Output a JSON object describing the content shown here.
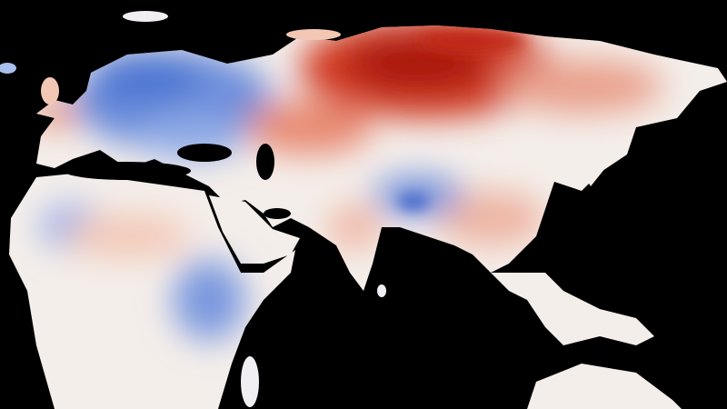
{
  "map": {
    "colors": {
      "ocean": "#000000",
      "land_neutral": "#f4eeea",
      "warm_strong": "#b0150c",
      "warm_mid": "#e0604a",
      "warm_light": "#f2b9a6",
      "cool_mid": "#5a82d8",
      "cool_light": "#a9c0ee"
    }
  }
}
